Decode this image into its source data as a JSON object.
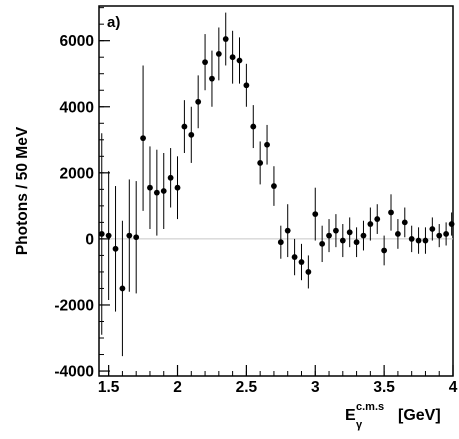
{
  "chart_data": {
    "type": "scatter",
    "panel_label": "a)",
    "xlabel": "E",
    "xlabel_sub": "γ",
    "xlabel_sup": "c.m.s",
    "xlabel_unit": "[GeV]",
    "ylabel": "Photons / 50 MeV",
    "xlim": [
      1.43,
      4.0
    ],
    "ylim": [
      -4150,
      7050
    ],
    "xticks": [
      {
        "v": 1.5,
        "label": "1.5"
      },
      {
        "v": 2.0,
        "label": "2"
      },
      {
        "v": 2.5,
        "label": "2.5"
      },
      {
        "v": 3.0,
        "label": "3"
      },
      {
        "v": 3.5,
        "label": "3.5"
      },
      {
        "v": 4.0,
        "label": "4"
      }
    ],
    "yticks": [
      {
        "v": 6000,
        "label": "6000"
      },
      {
        "v": 4000,
        "label": "4000"
      },
      {
        "v": 2000,
        "label": "2000"
      },
      {
        "v": 0,
        "label": "0"
      },
      {
        "v": -2000,
        "label": "-2000"
      },
      {
        "v": -4000,
        "label": "-4000"
      }
    ],
    "x_minor_step": 0.1,
    "y_minor_step": 500,
    "zero_line": true,
    "grid": false,
    "legend": "none",
    "series": [
      {
        "marker": "filled-circle",
        "color": "#000000",
        "points": [
          {
            "x": 1.45,
            "y": 150,
            "err": 3050
          },
          {
            "x": 1.5,
            "y": 100,
            "err": 1950
          },
          {
            "x": 1.55,
            "y": -300,
            "err": 1900
          },
          {
            "x": 1.6,
            "y": -1500,
            "err": 2050
          },
          {
            "x": 1.65,
            "y": 100,
            "err": 1700
          },
          {
            "x": 1.7,
            "y": 50,
            "err": 1700
          },
          {
            "x": 1.75,
            "y": 3050,
            "err": 2200
          },
          {
            "x": 1.8,
            "y": 1550,
            "err": 1250
          },
          {
            "x": 1.85,
            "y": 1400,
            "err": 1300
          },
          {
            "x": 1.9,
            "y": 1450,
            "err": 1150
          },
          {
            "x": 1.95,
            "y": 1850,
            "err": 900
          },
          {
            "x": 2.0,
            "y": 1550,
            "err": 950
          },
          {
            "x": 2.05,
            "y": 3400,
            "err": 800
          },
          {
            "x": 2.1,
            "y": 3150,
            "err": 850
          },
          {
            "x": 2.15,
            "y": 4150,
            "err": 800
          },
          {
            "x": 2.2,
            "y": 5350,
            "err": 850
          },
          {
            "x": 2.25,
            "y": 4850,
            "err": 850
          },
          {
            "x": 2.3,
            "y": 5600,
            "err": 800
          },
          {
            "x": 2.35,
            "y": 6050,
            "err": 800
          },
          {
            "x": 2.4,
            "y": 5500,
            "err": 800
          },
          {
            "x": 2.45,
            "y": 5400,
            "err": 700
          },
          {
            "x": 2.5,
            "y": 4650,
            "err": 650
          },
          {
            "x": 2.55,
            "y": 3400,
            "err": 650
          },
          {
            "x": 2.6,
            "y": 2300,
            "err": 650
          },
          {
            "x": 2.65,
            "y": 2850,
            "err": 600
          },
          {
            "x": 2.7,
            "y": 1600,
            "err": 600
          },
          {
            "x": 2.75,
            "y": -100,
            "err": 500
          },
          {
            "x": 2.8,
            "y": 250,
            "err": 800
          },
          {
            "x": 2.85,
            "y": -550,
            "err": 550
          },
          {
            "x": 2.9,
            "y": -700,
            "err": 550
          },
          {
            "x": 2.95,
            "y": -1000,
            "err": 500
          },
          {
            "x": 3.0,
            "y": 750,
            "err": 800
          },
          {
            "x": 3.05,
            "y": -150,
            "err": 550
          },
          {
            "x": 3.1,
            "y": 100,
            "err": 500
          },
          {
            "x": 3.15,
            "y": 250,
            "err": 500
          },
          {
            "x": 3.2,
            "y": -50,
            "err": 500
          },
          {
            "x": 3.25,
            "y": 200,
            "err": 450
          },
          {
            "x": 3.3,
            "y": -100,
            "err": 450
          },
          {
            "x": 3.35,
            "y": 100,
            "err": 450
          },
          {
            "x": 3.4,
            "y": 450,
            "err": 500
          },
          {
            "x": 3.45,
            "y": 600,
            "err": 450
          },
          {
            "x": 3.5,
            "y": -350,
            "err": 450
          },
          {
            "x": 3.55,
            "y": 800,
            "err": 550
          },
          {
            "x": 3.6,
            "y": 150,
            "err": 450
          },
          {
            "x": 3.65,
            "y": 500,
            "err": 450
          },
          {
            "x": 3.7,
            "y": 0,
            "err": 400
          },
          {
            "x": 3.75,
            "y": -50,
            "err": 400
          },
          {
            "x": 3.8,
            "y": -50,
            "err": 400
          },
          {
            "x": 3.85,
            "y": 300,
            "err": 350
          },
          {
            "x": 3.9,
            "y": 100,
            "err": 350
          },
          {
            "x": 3.95,
            "y": 150,
            "err": 350
          },
          {
            "x": 3.99,
            "y": 450,
            "err": 350
          }
        ]
      }
    ]
  }
}
